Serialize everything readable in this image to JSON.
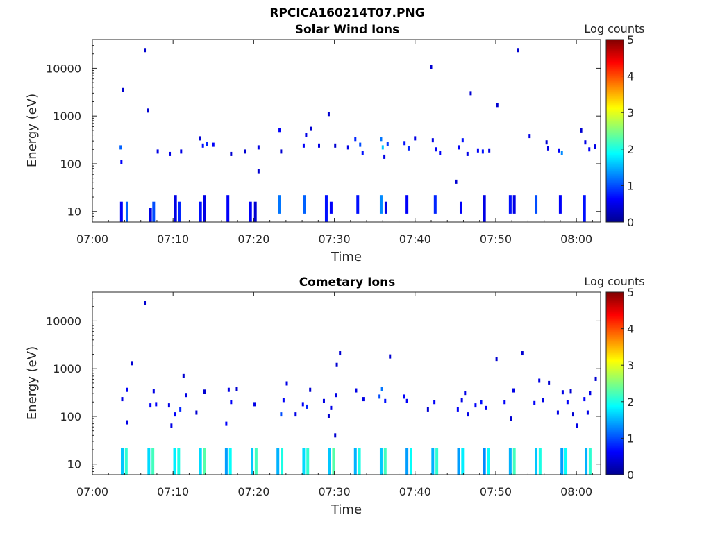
{
  "figure_title": "RPCICA160214T07.PNG",
  "chart_data": [
    {
      "type": "heatmap",
      "title": "Solar Wind Ions",
      "xlabel": "Time",
      "ylabel": "Energy (eV)",
      "xlim": [
        "07:00",
        "08:03"
      ],
      "ylim": [
        6,
        40000
      ],
      "yscale": "log",
      "x_ticks": [
        "07:00",
        "07:10",
        "07:20",
        "07:30",
        "07:40",
        "07:50",
        "08:00"
      ],
      "y_ticks": [
        "10",
        "100",
        "1000",
        "10000"
      ],
      "colorbar": {
        "label": "Log counts",
        "range": [
          0,
          5
        ],
        "ticks": [
          "0",
          "1",
          "2",
          "3",
          "4",
          "5"
        ],
        "colormap": "jet"
      },
      "grid": false,
      "bands": [
        {
          "t": 3.6,
          "e_lo": 6,
          "e_hi": 16,
          "v": 0.6
        },
        {
          "t": 4.3,
          "e_lo": 6,
          "e_hi": 16,
          "v": 1.1
        },
        {
          "t": 7.2,
          "e_lo": 6,
          "e_hi": 12,
          "v": 0.5
        },
        {
          "t": 7.6,
          "e_lo": 6,
          "e_hi": 16,
          "v": 1.0
        },
        {
          "t": 10.3,
          "e_lo": 6,
          "e_hi": 22,
          "v": 0.5
        },
        {
          "t": 10.8,
          "e_lo": 6,
          "e_hi": 16,
          "v": 0.8
        },
        {
          "t": 13.4,
          "e_lo": 6,
          "e_hi": 16,
          "v": 0.7
        },
        {
          "t": 13.9,
          "e_lo": 6,
          "e_hi": 22,
          "v": 0.5
        },
        {
          "t": 16.8,
          "e_lo": 6,
          "e_hi": 22,
          "v": 0.6
        },
        {
          "t": 19.6,
          "e_lo": 6,
          "e_hi": 16,
          "v": 0.6
        },
        {
          "t": 20.2,
          "e_lo": 6,
          "e_hi": 16,
          "v": 0.4
        },
        {
          "t": 23.2,
          "e_lo": 9,
          "e_hi": 22,
          "v": 1.2
        },
        {
          "t": 26.3,
          "e_lo": 9,
          "e_hi": 22,
          "v": 1.1
        },
        {
          "t": 29.0,
          "e_lo": 6,
          "e_hi": 22,
          "v": 0.7
        },
        {
          "t": 29.6,
          "e_lo": 9,
          "e_hi": 16,
          "v": 0.6
        },
        {
          "t": 32.9,
          "e_lo": 9,
          "e_hi": 22,
          "v": 0.7
        },
        {
          "t": 35.8,
          "e_lo": 9,
          "e_hi": 22,
          "v": 1.3
        },
        {
          "t": 36.4,
          "e_lo": 9,
          "e_hi": 16,
          "v": 0.5
        },
        {
          "t": 39.0,
          "e_lo": 9,
          "e_hi": 22,
          "v": 0.6
        },
        {
          "t": 42.5,
          "e_lo": 9,
          "e_hi": 22,
          "v": 0.8
        },
        {
          "t": 45.7,
          "e_lo": 9,
          "e_hi": 16,
          "v": 0.6
        },
        {
          "t": 48.6,
          "e_lo": 6,
          "e_hi": 22,
          "v": 0.5
        },
        {
          "t": 51.8,
          "e_lo": 9,
          "e_hi": 22,
          "v": 0.7
        },
        {
          "t": 52.3,
          "e_lo": 9,
          "e_hi": 22,
          "v": 0.5
        },
        {
          "t": 55.0,
          "e_lo": 9,
          "e_hi": 22,
          "v": 1.0
        },
        {
          "t": 58.0,
          "e_lo": 9,
          "e_hi": 22,
          "v": 0.6
        },
        {
          "t": 61.0,
          "e_lo": 6,
          "e_hi": 22,
          "v": 0.7
        }
      ],
      "scatter": [
        {
          "t": 3.6,
          "e": 110,
          "v": 0.6
        },
        {
          "t": 3.5,
          "e": 220,
          "v": 1.1
        },
        {
          "t": 3.8,
          "e": 3500,
          "v": 0.4
        },
        {
          "t": 6.5,
          "e": 24000,
          "v": 0.4
        },
        {
          "t": 6.9,
          "e": 1300,
          "v": 0.4
        },
        {
          "t": 8.1,
          "e": 180,
          "v": 0.5
        },
        {
          "t": 9.6,
          "e": 160,
          "v": 0.5
        },
        {
          "t": 11.0,
          "e": 180,
          "v": 0.5
        },
        {
          "t": 13.3,
          "e": 340,
          "v": 0.4
        },
        {
          "t": 13.7,
          "e": 240,
          "v": 0.7
        },
        {
          "t": 14.2,
          "e": 260,
          "v": 0.8
        },
        {
          "t": 15.0,
          "e": 250,
          "v": 0.6
        },
        {
          "t": 17.2,
          "e": 160,
          "v": 0.4
        },
        {
          "t": 18.9,
          "e": 180,
          "v": 0.4
        },
        {
          "t": 20.6,
          "e": 220,
          "v": 0.5
        },
        {
          "t": 20.6,
          "e": 70,
          "v": 0.4
        },
        {
          "t": 23.2,
          "e": 510,
          "v": 0.6
        },
        {
          "t": 23.4,
          "e": 180,
          "v": 0.4
        },
        {
          "t": 26.2,
          "e": 240,
          "v": 0.6
        },
        {
          "t": 26.5,
          "e": 400,
          "v": 0.5
        },
        {
          "t": 27.1,
          "e": 540,
          "v": 0.4
        },
        {
          "t": 28.1,
          "e": 240,
          "v": 0.5
        },
        {
          "t": 29.3,
          "e": 1100,
          "v": 0.4
        },
        {
          "t": 30.1,
          "e": 240,
          "v": 0.4
        },
        {
          "t": 31.7,
          "e": 220,
          "v": 0.5
        },
        {
          "t": 32.6,
          "e": 330,
          "v": 0.8
        },
        {
          "t": 33.2,
          "e": 250,
          "v": 1.0
        },
        {
          "t": 33.5,
          "e": 170,
          "v": 0.7
        },
        {
          "t": 35.8,
          "e": 330,
          "v": 1.2
        },
        {
          "t": 36.0,
          "e": 220,
          "v": 1.6
        },
        {
          "t": 36.6,
          "e": 260,
          "v": 0.9
        },
        {
          "t": 36.2,
          "e": 140,
          "v": 0.5
        },
        {
          "t": 38.7,
          "e": 270,
          "v": 0.7
        },
        {
          "t": 39.2,
          "e": 210,
          "v": 0.8
        },
        {
          "t": 40.0,
          "e": 340,
          "v": 0.5
        },
        {
          "t": 42.0,
          "e": 10500,
          "v": 0.4
        },
        {
          "t": 42.2,
          "e": 310,
          "v": 0.5
        },
        {
          "t": 42.6,
          "e": 200,
          "v": 0.6
        },
        {
          "t": 43.1,
          "e": 170,
          "v": 0.6
        },
        {
          "t": 45.1,
          "e": 42,
          "v": 0.4
        },
        {
          "t": 45.4,
          "e": 220,
          "v": 0.6
        },
        {
          "t": 45.9,
          "e": 310,
          "v": 0.7
        },
        {
          "t": 46.5,
          "e": 160,
          "v": 0.5
        },
        {
          "t": 46.9,
          "e": 3000,
          "v": 0.4
        },
        {
          "t": 47.8,
          "e": 190,
          "v": 0.6
        },
        {
          "t": 48.4,
          "e": 180,
          "v": 0.7
        },
        {
          "t": 49.2,
          "e": 190,
          "v": 0.5
        },
        {
          "t": 50.2,
          "e": 1700,
          "v": 0.4
        },
        {
          "t": 52.8,
          "e": 24000,
          "v": 0.4
        },
        {
          "t": 54.2,
          "e": 380,
          "v": 0.5
        },
        {
          "t": 56.3,
          "e": 280,
          "v": 0.4
        },
        {
          "t": 56.5,
          "e": 210,
          "v": 0.5
        },
        {
          "t": 57.8,
          "e": 190,
          "v": 0.6
        },
        {
          "t": 58.2,
          "e": 170,
          "v": 1.3
        },
        {
          "t": 60.6,
          "e": 500,
          "v": 0.4
        },
        {
          "t": 61.1,
          "e": 280,
          "v": 0.5
        },
        {
          "t": 61.6,
          "e": 200,
          "v": 0.6
        },
        {
          "t": 62.3,
          "e": 230,
          "v": 0.5
        }
      ]
    },
    {
      "type": "heatmap",
      "title": "Cometary Ions",
      "xlabel": "Time",
      "ylabel": "Energy (eV)",
      "xlim": [
        "07:00",
        "08:03"
      ],
      "ylim": [
        6,
        40000
      ],
      "yscale": "log",
      "x_ticks": [
        "07:00",
        "07:10",
        "07:20",
        "07:30",
        "07:40",
        "07:50",
        "08:00"
      ],
      "y_ticks": [
        "10",
        "100",
        "1000",
        "10000"
      ],
      "colorbar": {
        "label": "Log counts",
        "range": [
          0,
          5
        ],
        "ticks": [
          "0",
          "1",
          "2",
          "3",
          "4",
          "5"
        ],
        "colormap": "jet"
      },
      "grid": false,
      "bands": [
        {
          "t": 3.7,
          "e_lo": 6,
          "e_hi": 22,
          "v": 1.6
        },
        {
          "t": 4.2,
          "e_lo": 6,
          "e_hi": 22,
          "v": 2.1
        },
        {
          "t": 7.0,
          "e_lo": 6,
          "e_hi": 22,
          "v": 1.7
        },
        {
          "t": 7.5,
          "e_lo": 6,
          "e_hi": 22,
          "v": 2.2
        },
        {
          "t": 10.2,
          "e_lo": 6,
          "e_hi": 22,
          "v": 1.8
        },
        {
          "t": 10.7,
          "e_lo": 6,
          "e_hi": 22,
          "v": 2.0
        },
        {
          "t": 13.4,
          "e_lo": 6,
          "e_hi": 22,
          "v": 1.7
        },
        {
          "t": 13.9,
          "e_lo": 6,
          "e_hi": 22,
          "v": 2.3
        },
        {
          "t": 16.6,
          "e_lo": 6,
          "e_hi": 22,
          "v": 1.4
        },
        {
          "t": 17.1,
          "e_lo": 6,
          "e_hi": 22,
          "v": 1.9
        },
        {
          "t": 19.8,
          "e_lo": 6,
          "e_hi": 22,
          "v": 1.6
        },
        {
          "t": 20.3,
          "e_lo": 6,
          "e_hi": 22,
          "v": 2.2
        },
        {
          "t": 23.0,
          "e_lo": 6,
          "e_hi": 22,
          "v": 1.5
        },
        {
          "t": 23.5,
          "e_lo": 6,
          "e_hi": 22,
          "v": 2.0
        },
        {
          "t": 26.2,
          "e_lo": 6,
          "e_hi": 22,
          "v": 1.7
        },
        {
          "t": 26.7,
          "e_lo": 6,
          "e_hi": 22,
          "v": 2.1
        },
        {
          "t": 29.4,
          "e_lo": 6,
          "e_hi": 22,
          "v": 1.6
        },
        {
          "t": 29.9,
          "e_lo": 6,
          "e_hi": 22,
          "v": 2.3
        },
        {
          "t": 32.6,
          "e_lo": 6,
          "e_hi": 22,
          "v": 1.5
        },
        {
          "t": 33.1,
          "e_lo": 6,
          "e_hi": 22,
          "v": 2.0
        },
        {
          "t": 35.8,
          "e_lo": 6,
          "e_hi": 22,
          "v": 1.6
        },
        {
          "t": 36.3,
          "e_lo": 6,
          "e_hi": 22,
          "v": 2.2
        },
        {
          "t": 39.0,
          "e_lo": 6,
          "e_hi": 22,
          "v": 1.4
        },
        {
          "t": 39.5,
          "e_lo": 6,
          "e_hi": 22,
          "v": 1.9
        },
        {
          "t": 42.2,
          "e_lo": 6,
          "e_hi": 22,
          "v": 1.5
        },
        {
          "t": 42.7,
          "e_lo": 6,
          "e_hi": 22,
          "v": 2.1
        },
        {
          "t": 45.4,
          "e_lo": 6,
          "e_hi": 22,
          "v": 1.4
        },
        {
          "t": 45.9,
          "e_lo": 6,
          "e_hi": 22,
          "v": 1.8
        },
        {
          "t": 48.6,
          "e_lo": 6,
          "e_hi": 22,
          "v": 1.3
        },
        {
          "t": 49.1,
          "e_lo": 6,
          "e_hi": 22,
          "v": 1.9
        },
        {
          "t": 51.8,
          "e_lo": 6,
          "e_hi": 22,
          "v": 1.5
        },
        {
          "t": 52.3,
          "e_lo": 6,
          "e_hi": 22,
          "v": 2.2
        },
        {
          "t": 55.0,
          "e_lo": 6,
          "e_hi": 22,
          "v": 1.6
        },
        {
          "t": 55.5,
          "e_lo": 6,
          "e_hi": 22,
          "v": 2.0
        },
        {
          "t": 58.2,
          "e_lo": 6,
          "e_hi": 22,
          "v": 1.4
        },
        {
          "t": 58.7,
          "e_lo": 6,
          "e_hi": 22,
          "v": 1.9
        },
        {
          "t": 61.2,
          "e_lo": 6,
          "e_hi": 22,
          "v": 1.5
        },
        {
          "t": 61.7,
          "e_lo": 6,
          "e_hi": 22,
          "v": 2.1
        }
      ],
      "scatter": [
        {
          "t": 3.7,
          "e": 230,
          "v": 0.5
        },
        {
          "t": 4.3,
          "e": 360,
          "v": 0.6
        },
        {
          "t": 4.3,
          "e": 75,
          "v": 0.5
        },
        {
          "t": 4.9,
          "e": 1300,
          "v": 0.4
        },
        {
          "t": 6.5,
          "e": 24000,
          "v": 0.4
        },
        {
          "t": 7.2,
          "e": 170,
          "v": 0.6
        },
        {
          "t": 7.6,
          "e": 340,
          "v": 0.5
        },
        {
          "t": 7.9,
          "e": 180,
          "v": 0.6
        },
        {
          "t": 9.5,
          "e": 170,
          "v": 0.5
        },
        {
          "t": 9.8,
          "e": 64,
          "v": 0.5
        },
        {
          "t": 10.2,
          "e": 110,
          "v": 0.6
        },
        {
          "t": 10.9,
          "e": 140,
          "v": 0.8
        },
        {
          "t": 11.3,
          "e": 700,
          "v": 0.4
        },
        {
          "t": 11.6,
          "e": 280,
          "v": 0.5
        },
        {
          "t": 12.9,
          "e": 120,
          "v": 0.4
        },
        {
          "t": 13.9,
          "e": 330,
          "v": 0.4
        },
        {
          "t": 16.6,
          "e": 70,
          "v": 0.6
        },
        {
          "t": 16.9,
          "e": 360,
          "v": 0.5
        },
        {
          "t": 17.2,
          "e": 200,
          "v": 0.6
        },
        {
          "t": 17.9,
          "e": 380,
          "v": 0.4
        },
        {
          "t": 20.1,
          "e": 180,
          "v": 0.5
        },
        {
          "t": 23.4,
          "e": 110,
          "v": 1.0
        },
        {
          "t": 23.7,
          "e": 220,
          "v": 0.6
        },
        {
          "t": 24.1,
          "e": 490,
          "v": 0.5
        },
        {
          "t": 25.2,
          "e": 110,
          "v": 0.5
        },
        {
          "t": 26.1,
          "e": 180,
          "v": 0.6
        },
        {
          "t": 26.6,
          "e": 160,
          "v": 0.8
        },
        {
          "t": 27.0,
          "e": 360,
          "v": 0.4
        },
        {
          "t": 28.7,
          "e": 210,
          "v": 0.5
        },
        {
          "t": 29.3,
          "e": 100,
          "v": 0.4
        },
        {
          "t": 29.6,
          "e": 150,
          "v": 0.5
        },
        {
          "t": 30.3,
          "e": 1200,
          "v": 0.4
        },
        {
          "t": 30.7,
          "e": 2100,
          "v": 0.4
        },
        {
          "t": 30.2,
          "e": 280,
          "v": 0.5
        },
        {
          "t": 30.1,
          "e": 40,
          "v": 0.4
        },
        {
          "t": 32.7,
          "e": 350,
          "v": 0.5
        },
        {
          "t": 33.6,
          "e": 230,
          "v": 0.5
        },
        {
          "t": 35.6,
          "e": 260,
          "v": 1.0
        },
        {
          "t": 35.9,
          "e": 380,
          "v": 1.2
        },
        {
          "t": 36.3,
          "e": 210,
          "v": 0.7
        },
        {
          "t": 36.9,
          "e": 1800,
          "v": 0.4
        },
        {
          "t": 38.6,
          "e": 260,
          "v": 0.6
        },
        {
          "t": 39.0,
          "e": 210,
          "v": 0.6
        },
        {
          "t": 41.6,
          "e": 140,
          "v": 0.4
        },
        {
          "t": 42.4,
          "e": 200,
          "v": 0.6
        },
        {
          "t": 45.3,
          "e": 140,
          "v": 0.6
        },
        {
          "t": 45.8,
          "e": 220,
          "v": 0.5
        },
        {
          "t": 46.2,
          "e": 310,
          "v": 0.5
        },
        {
          "t": 46.6,
          "e": 110,
          "v": 0.5
        },
        {
          "t": 47.5,
          "e": 170,
          "v": 0.6
        },
        {
          "t": 48.2,
          "e": 200,
          "v": 0.7
        },
        {
          "t": 48.8,
          "e": 150,
          "v": 0.6
        },
        {
          "t": 50.1,
          "e": 1600,
          "v": 0.4
        },
        {
          "t": 51.1,
          "e": 200,
          "v": 0.6
        },
        {
          "t": 51.9,
          "e": 90,
          "v": 0.4
        },
        {
          "t": 52.2,
          "e": 350,
          "v": 0.5
        },
        {
          "t": 53.3,
          "e": 2100,
          "v": 0.4
        },
        {
          "t": 54.8,
          "e": 190,
          "v": 0.6
        },
        {
          "t": 55.4,
          "e": 560,
          "v": 0.5
        },
        {
          "t": 55.9,
          "e": 220,
          "v": 0.5
        },
        {
          "t": 56.6,
          "e": 500,
          "v": 0.4
        },
        {
          "t": 57.7,
          "e": 120,
          "v": 0.5
        },
        {
          "t": 58.3,
          "e": 320,
          "v": 0.5
        },
        {
          "t": 58.9,
          "e": 200,
          "v": 0.6
        },
        {
          "t": 59.3,
          "e": 340,
          "v": 0.4
        },
        {
          "t": 59.6,
          "e": 110,
          "v": 0.4
        },
        {
          "t": 60.1,
          "e": 64,
          "v": 0.5
        },
        {
          "t": 61.0,
          "e": 230,
          "v": 0.6
        },
        {
          "t": 61.7,
          "e": 310,
          "v": 0.5
        },
        {
          "t": 62.4,
          "e": 610,
          "v": 0.4
        },
        {
          "t": 61.4,
          "e": 120,
          "v": 0.5
        }
      ]
    }
  ]
}
